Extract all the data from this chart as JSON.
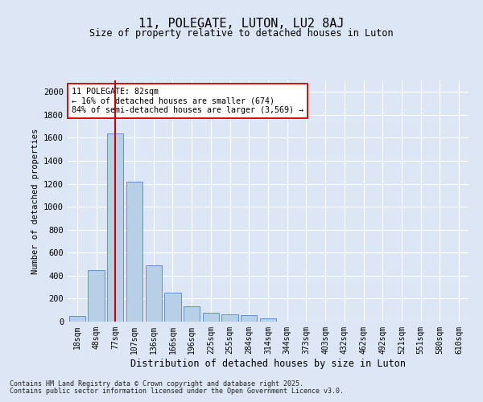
{
  "title1": "11, POLEGATE, LUTON, LU2 8AJ",
  "title2": "Size of property relative to detached houses in Luton",
  "xlabel": "Distribution of detached houses by size in Luton",
  "ylabel": "Number of detached properties",
  "categories": [
    "18sqm",
    "48sqm",
    "77sqm",
    "107sqm",
    "136sqm",
    "166sqm",
    "196sqm",
    "225sqm",
    "255sqm",
    "284sqm",
    "314sqm",
    "344sqm",
    "373sqm",
    "403sqm",
    "432sqm",
    "462sqm",
    "492sqm",
    "521sqm",
    "551sqm",
    "580sqm",
    "610sqm"
  ],
  "values": [
    50,
    450,
    1640,
    1220,
    490,
    250,
    130,
    80,
    65,
    55,
    30,
    0,
    0,
    0,
    0,
    0,
    0,
    0,
    0,
    0,
    0
  ],
  "bar_color": "#b8cfe8",
  "bar_edge_color": "#5585c5",
  "vline_x_index": 2,
  "vline_color": "#cc0000",
  "annotation_text": "11 POLEGATE: 82sqm\n← 16% of detached houses are smaller (674)\n84% of semi-detached houses are larger (3,569) →",
  "annotation_box_color": "#ffffff",
  "annotation_box_edge": "#cc0000",
  "bg_color": "#dce6f5",
  "plot_bg_color": "#dce6f5",
  "grid_color": "#ffffff",
  "ylim": [
    0,
    2100
  ],
  "yticks": [
    0,
    200,
    400,
    600,
    800,
    1000,
    1200,
    1400,
    1600,
    1800,
    2000
  ],
  "footer1": "Contains HM Land Registry data © Crown copyright and database right 2025.",
  "footer2": "Contains public sector information licensed under the Open Government Licence v3.0."
}
